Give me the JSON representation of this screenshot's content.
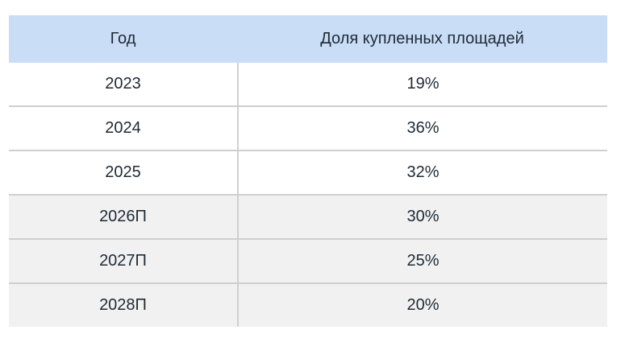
{
  "table": {
    "headers": [
      "Год",
      "Доля купленных площадей"
    ],
    "rows": [
      {
        "year": "2023",
        "share": "19%"
      },
      {
        "year": "2024",
        "share": "36%"
      },
      {
        "year": "2025",
        "share": "32%"
      },
      {
        "year": "2026П",
        "share": "30%"
      },
      {
        "year": "2027П",
        "share": "25%"
      },
      {
        "year": "2028П",
        "share": "20%"
      }
    ]
  },
  "colors": {
    "header_bg": "#c9ddf6",
    "forecast_row_bg": "#f1f1f1",
    "grid": "#cfcfcf"
  }
}
